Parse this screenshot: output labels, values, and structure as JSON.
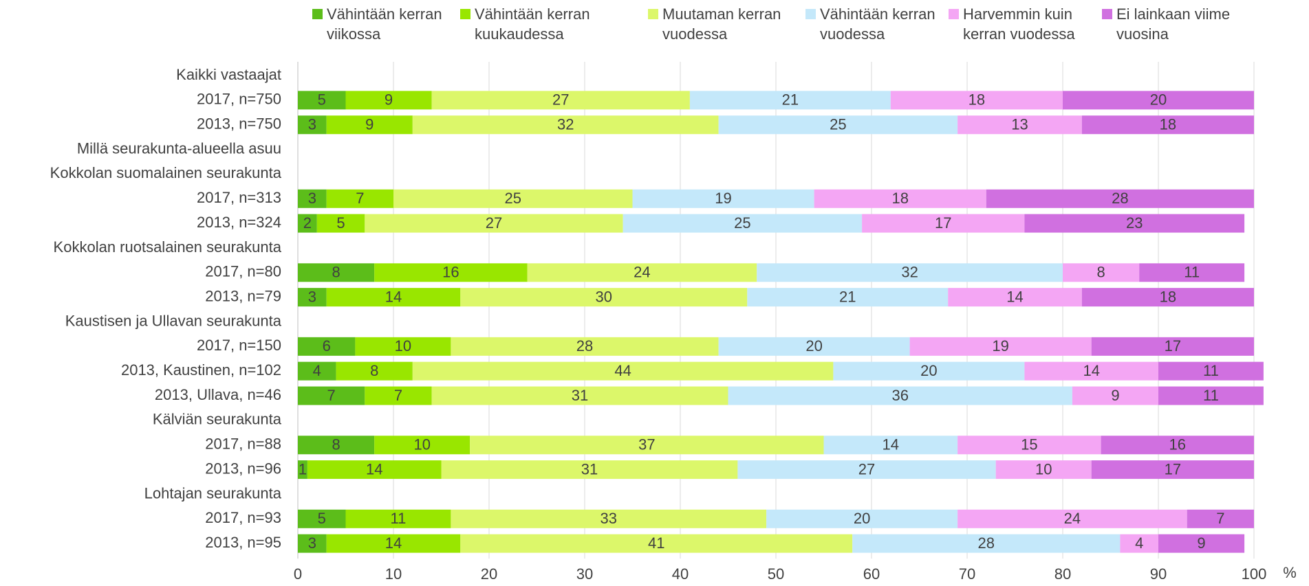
{
  "chart_data": {
    "type": "stacked_bar_horizontal",
    "categories": [
      "Kaikki vastaajat",
      "2017, n=750",
      "2013, n=750",
      "Millä seurakunta-alueella asuu",
      "Kokkolan suomalainen seurakunta",
      "2017, n=313",
      "2013, n=324",
      "Kokkolan ruotsalainen seurakunta",
      "2017, n=80",
      "2013, n=79",
      "Kaustisen ja Ullavan seurakunta",
      "2017, n=150",
      "2013, Kaustinen, n=102",
      "2013, Ullava, n=46",
      "Kälviän seurakunta",
      "2017, n=88",
      "2013, n=96",
      "Lohtajan seurakunta",
      "2017, n=93",
      "2013, n=95"
    ],
    "series": [
      {
        "name": "Vähintään kerran viikossa",
        "color": "#5cbd1a",
        "values": [
          null,
          5,
          3,
          null,
          null,
          3,
          2,
          null,
          8,
          3,
          null,
          6,
          4,
          7,
          null,
          8,
          1,
          null,
          5,
          3
        ]
      },
      {
        "name": "Vähintään kerran kuukaudessa",
        "color": "#99e600",
        "values": [
          null,
          9,
          9,
          null,
          null,
          7,
          5,
          null,
          16,
          14,
          null,
          10,
          8,
          7,
          null,
          10,
          14,
          null,
          11,
          14
        ]
      },
      {
        "name": "Muutaman kerran vuodessa",
        "color": "#dcf76a",
        "values": [
          null,
          27,
          32,
          null,
          null,
          25,
          27,
          null,
          24,
          30,
          null,
          28,
          44,
          31,
          null,
          37,
          31,
          null,
          33,
          41
        ]
      },
      {
        "name": "Vähintään kerran vuodessa",
        "color": "#c4e8fa",
        "values": [
          null,
          21,
          25,
          null,
          null,
          19,
          25,
          null,
          32,
          21,
          null,
          20,
          20,
          36,
          null,
          14,
          27,
          null,
          20,
          28
        ]
      },
      {
        "name": "Harvemmin kuin kerran vuodessa",
        "color": "#f4a6f4",
        "values": [
          null,
          18,
          13,
          null,
          null,
          18,
          17,
          null,
          8,
          14,
          null,
          19,
          14,
          9,
          null,
          15,
          10,
          null,
          24,
          4
        ]
      },
      {
        "name": "Ei lainkaan viime vuosina",
        "color": "#d070e0",
        "values": [
          null,
          20,
          18,
          null,
          null,
          28,
          23,
          null,
          11,
          18,
          null,
          17,
          11,
          11,
          null,
          16,
          17,
          null,
          7,
          9
        ]
      }
    ],
    "xlim": [
      0,
      100
    ],
    "xticks": [
      0,
      10,
      20,
      30,
      40,
      50,
      60,
      70,
      80,
      90,
      100
    ],
    "xlabel": "%",
    "grid": true,
    "legend": "top"
  }
}
